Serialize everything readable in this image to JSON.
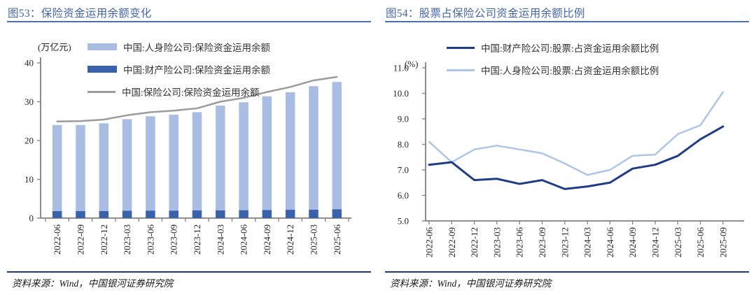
{
  "colors": {
    "title_blue": "#4366A8",
    "title_rule_blue": "#4C6FAE",
    "footer_rule_navy": "#20386B",
    "axis_gray": "#808080",
    "tick_text": "#262626",
    "life_bar_light_blue": "#A9BDE3",
    "property_bar_blue": "#3A62AB",
    "total_line_gray": "#9C9C9C",
    "property_line_navy": "#1F3C87",
    "life_line_light_blue": "#AEC4E8"
  },
  "chart_data": [
    {
      "type": "bar+line",
      "title": "图53：保险资金运用余额变化",
      "unit_label": "(万亿元)",
      "xlabel": "",
      "ylabel": "万亿元",
      "ylim": [
        0,
        40
      ],
      "yticks": [
        0,
        10,
        20,
        30,
        40
      ],
      "grid": false,
      "legend_position": "top",
      "stacked": true,
      "categories": [
        "2022-06",
        "2022-09",
        "2022-12",
        "2023-03",
        "2023-06",
        "2023-09",
        "2023-12",
        "2024-03",
        "2024-06",
        "2024-09",
        "2024-12",
        "2025-03",
        "2025-06"
      ],
      "series": [
        {
          "name": "中国:人身险公司:保险资金运用余额",
          "type": "bar",
          "stack_order": 1,
          "color": "#A9BDE3",
          "values": [
            22.2,
            22.2,
            22.6,
            23.6,
            24.3,
            24.7,
            25.3,
            27.0,
            27.8,
            29.3,
            30.3,
            31.8,
            32.8
          ]
        },
        {
          "name": "中国:财产险公司:保险资金运用余额",
          "type": "bar",
          "stack_order": 0,
          "color": "#3A62AB",
          "values": [
            1.8,
            1.8,
            1.85,
            1.9,
            1.95,
            1.95,
            2.0,
            2.0,
            2.05,
            2.1,
            2.15,
            2.2,
            2.3
          ]
        },
        {
          "name": "中国:保险公司:保险资金运用余额",
          "type": "line",
          "color": "#9C9C9C",
          "values": [
            24.9,
            25.0,
            25.4,
            26.5,
            27.3,
            27.7,
            28.3,
            30.0,
            31.0,
            32.5,
            33.8,
            35.5,
            36.4
          ]
        }
      ],
      "source": "资料来源：Wind，中国银河证券研究院"
    },
    {
      "type": "line",
      "title": "图54：股票占保险公司资金运用余额比例",
      "unit_label": "(%)",
      "xlabel": "",
      "ylabel": "%",
      "ylim": [
        5.0,
        11.0
      ],
      "yticks": [
        5,
        6,
        7,
        8,
        9,
        10,
        11
      ],
      "grid": false,
      "legend_position": "top",
      "categories": [
        "2022-06",
        "2022-09",
        "2022-12",
        "2023-03",
        "2023-06",
        "2023-09",
        "2023-12",
        "2024-03",
        "2024-06",
        "2024-09",
        "2024-12",
        "2025-03",
        "2025-06",
        "2025-09"
      ],
      "series": [
        {
          "name": "中国:财产险公司:股票:占资金运用余额比例",
          "type": "line",
          "color": "#1F3C87",
          "values": [
            7.2,
            7.3,
            6.6,
            6.65,
            6.45,
            6.6,
            6.25,
            6.35,
            6.5,
            7.05,
            7.2,
            7.55,
            8.2,
            8.7
          ]
        },
        {
          "name": "中国:人身险公司:股票:占资金运用余额比例",
          "type": "line",
          "color": "#AEC4E8",
          "values": [
            8.1,
            7.3,
            7.8,
            7.95,
            7.8,
            7.65,
            7.25,
            6.8,
            7.0,
            7.55,
            7.6,
            8.4,
            8.75,
            10.05
          ]
        }
      ],
      "source": "资料来源：Wind，中国银河证券研究院"
    }
  ]
}
